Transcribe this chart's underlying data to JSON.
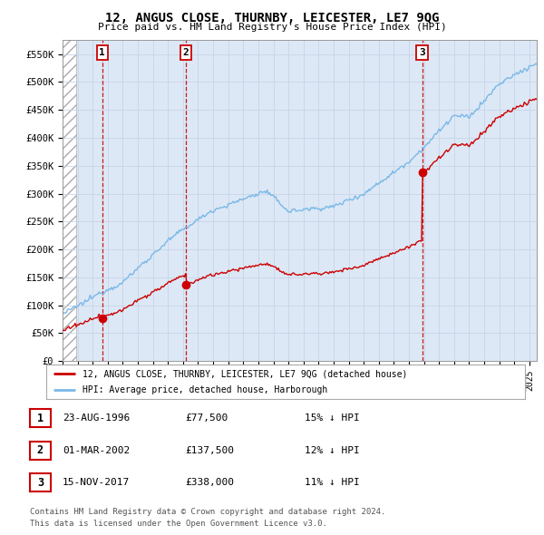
{
  "title": "12, ANGUS CLOSE, THURNBY, LEICESTER, LE7 9QG",
  "subtitle": "Price paid vs. HM Land Registry's House Price Index (HPI)",
  "ylim": [
    0,
    575000
  ],
  "yticks": [
    0,
    50000,
    100000,
    150000,
    200000,
    250000,
    300000,
    350000,
    400000,
    450000,
    500000,
    550000
  ],
  "ytick_labels": [
    "£0",
    "£50K",
    "£100K",
    "£150K",
    "£200K",
    "£250K",
    "£300K",
    "£350K",
    "£400K",
    "£450K",
    "£500K",
    "£550K"
  ],
  "hpi_color": "#7ab8e8",
  "price_color": "#cc0000",
  "marker_color": "#cc0000",
  "vline_color": "#cc0000",
  "grid_color": "#c8d4e8",
  "bg_color": "#dce8f5",
  "sale_dates": [
    1996.63,
    2002.17,
    2017.88
  ],
  "sale_prices": [
    77500,
    137500,
    338000
  ],
  "sale_labels": [
    "1",
    "2",
    "3"
  ],
  "legend_label_price": "12, ANGUS CLOSE, THURNBY, LEICESTER, LE7 9QG (detached house)",
  "legend_label_hpi": "HPI: Average price, detached house, Harborough",
  "table_entries": [
    {
      "num": "1",
      "date": "23-AUG-1996",
      "price": "£77,500",
      "pct": "15% ↓ HPI"
    },
    {
      "num": "2",
      "date": "01-MAR-2002",
      "price": "£137,500",
      "pct": "12% ↓ HPI"
    },
    {
      "num": "3",
      "date": "15-NOV-2017",
      "price": "£338,000",
      "pct": "11% ↓ HPI"
    }
  ],
  "footnote1": "Contains HM Land Registry data © Crown copyright and database right 2024.",
  "footnote2": "This data is licensed under the Open Government Licence v3.0.",
  "xmin": 1994.0,
  "xmax": 2025.5,
  "hatch_end": 1994.9
}
